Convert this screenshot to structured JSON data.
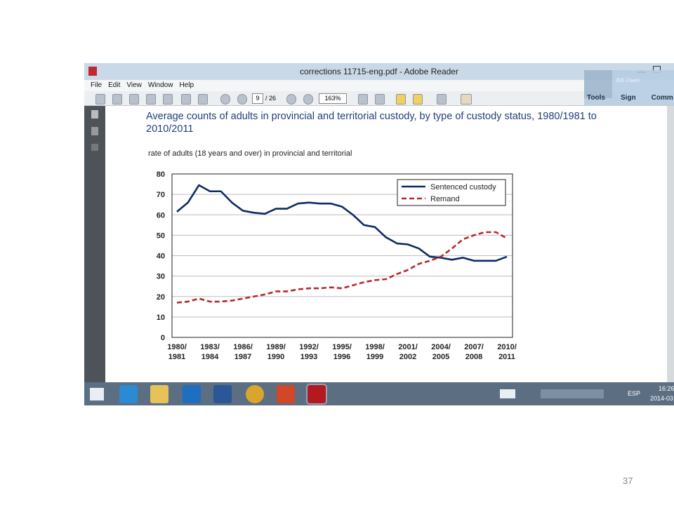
{
  "window": {
    "title": "corrections 11715-eng.pdf - Adobe Reader",
    "menu": [
      "File",
      "Edit",
      "View",
      "Window",
      "Help"
    ],
    "page_current": "9",
    "page_total": "/ 26",
    "zoom": "163%",
    "right_buttons": [
      "Tools",
      "Sign",
      "Comm"
    ],
    "notification": "Bill Owen"
  },
  "document": {
    "heading": "Average counts of adults in provincial and territorial custody, by type of custody status, 1980/1981 to 2010/2011"
  },
  "chart_data": {
    "type": "line",
    "title": "rate of adults (18 years and over) in provincial and territorial",
    "categories": [
      "1980/1981",
      null,
      null,
      "1983/1984",
      null,
      null,
      "1986/1987",
      null,
      null,
      "1989/1990",
      null,
      null,
      "1992/1993",
      null,
      null,
      "1995/1996",
      null,
      null,
      "1998/1999",
      null,
      null,
      "2001/2002",
      null,
      null,
      "2004/2005",
      null,
      null,
      "2007/2008",
      null,
      null,
      "2010/2011"
    ],
    "series": [
      {
        "name": "Sentenced custody",
        "color": "#0d2b63",
        "dash": false,
        "values": [
          61.5,
          66,
          74.5,
          71.5,
          71.5,
          66,
          62,
          61,
          60.5,
          63,
          63,
          65.5,
          66,
          65.5,
          65.5,
          64,
          60,
          55,
          54,
          49,
          46,
          45.5,
          43.5,
          39.5,
          39,
          38,
          39,
          37.5,
          37.5,
          37.5,
          39.5
        ]
      },
      {
        "name": "Remand",
        "color": "#b5292e",
        "dash": true,
        "values": [
          17,
          17.5,
          19,
          17.5,
          17.5,
          18,
          19,
          20,
          21,
          22.5,
          22.5,
          23.5,
          24,
          24,
          24.5,
          24,
          25.5,
          27,
          28,
          28.5,
          31,
          33,
          36,
          37.5,
          39.5,
          43.5,
          48,
          50,
          51.5,
          51.5,
          48.5
        ]
      }
    ],
    "ylim": [
      0,
      80
    ],
    "yticks": [
      0,
      10,
      20,
      30,
      40,
      50,
      60,
      70,
      80
    ],
    "grid": true,
    "legend": "top-right"
  },
  "taskbar": {
    "language": "ESP",
    "time": "16:26",
    "date": "2014-03"
  },
  "slide_number": "37"
}
